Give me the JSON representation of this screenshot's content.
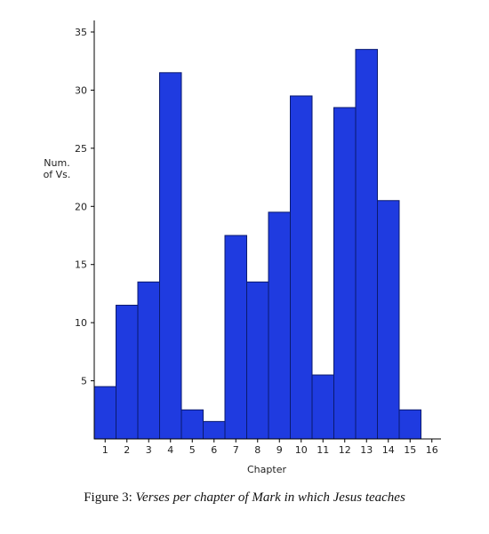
{
  "chart_data": {
    "type": "bar",
    "categories": [
      "1",
      "2",
      "3",
      "4",
      "5",
      "6",
      "7",
      "8",
      "9",
      "10",
      "11",
      "12",
      "13",
      "14",
      "15"
    ],
    "values": [
      4.5,
      11.5,
      13.5,
      31.5,
      2.5,
      1.5,
      17.5,
      13.5,
      19.5,
      29.5,
      5.5,
      28.5,
      33.5,
      20.5,
      2.5
    ],
    "xlabel": "Chapter",
    "ylabel_lines": [
      "Num.",
      "of Vs."
    ],
    "ylim": [
      0,
      35
    ],
    "yticks": [
      5,
      10,
      15,
      20,
      25,
      30,
      35
    ],
    "xticks": [
      "1",
      "2",
      "3",
      "4",
      "5",
      "6",
      "7",
      "8",
      "9",
      "10",
      "11",
      "12",
      "13",
      "14",
      "15",
      "16"
    ],
    "grid": false,
    "bar_color": "#1f3be0",
    "bar_edge_color": "#0a1a6e"
  },
  "caption": {
    "lead": "Figure 3: ",
    "title": "Verses per chapter of Mark in which Jesus teaches"
  }
}
